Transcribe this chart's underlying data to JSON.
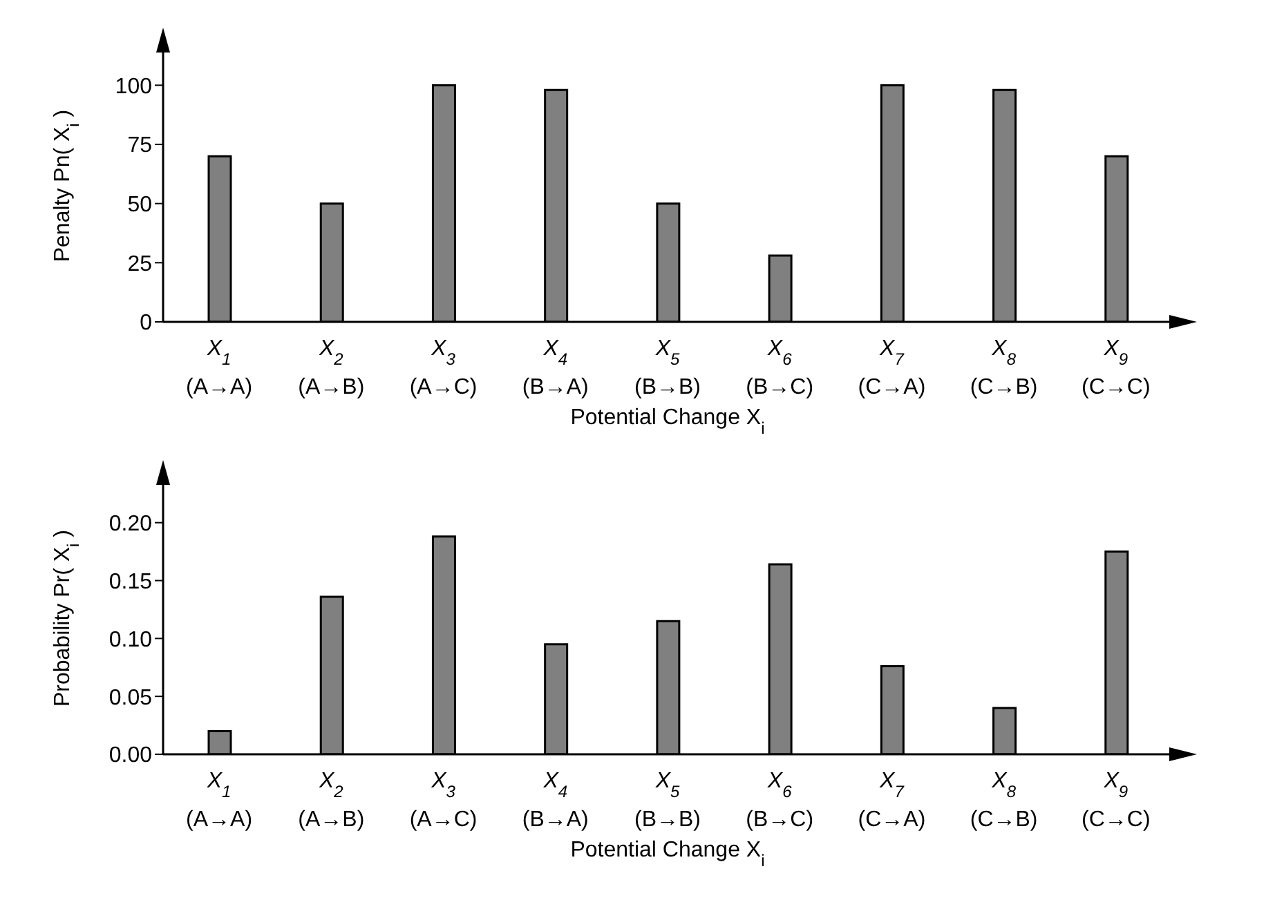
{
  "chart_data": [
    {
      "type": "bar",
      "xlabel": "Potential Change  X$_{i}$",
      "ylabel": "Penalty Pn( X$_{i}$ )",
      "categories": [
        "X$_{1}$\n(A→A)",
        "X$_{2}$\n(A→B)",
        "X$_{3}$\n(A→C)",
        "X$_{4}$\n(B→A)",
        "X$_{5}$\n(B→B)",
        "X$_{6}$\n(B→C)",
        "X$_{7}$\n(C→A)",
        "X$_{8}$\n(C→B)",
        "X$_{9}$\n(C→C)"
      ],
      "values": [
        70,
        50,
        100,
        98,
        50,
        28,
        100,
        98,
        70
      ],
      "color": "#808080",
      "ylim": [
        0,
        115
      ],
      "yticks": [
        0,
        25,
        50,
        75,
        100
      ]
    },
    {
      "type": "bar",
      "xlabel": "Potential Change  X$_{i}$",
      "ylabel": "Probability Pr( X$_{i}$ )",
      "categories": [
        "X$_{1}$\n(A→A)",
        "X$_{2}$\n(A→B)",
        "X$_{3}$\n(A→C)",
        "X$_{4}$\n(B→A)",
        "X$_{5}$\n(B→B)",
        "X$_{6}$\n(B→C)",
        "X$_{7}$\n(C→A)",
        "X$_{8}$\n(C→B)",
        "X$_{9}$\n(C→C)"
      ],
      "values": [
        0.02,
        0.136,
        0.188,
        0.095,
        0.115,
        0.164,
        0.076,
        0.04,
        0.175
      ],
      "color": "#808080",
      "ylim": [
        0,
        0.235
      ],
      "yticks": [
        {
          "value": 0,
          "label": "0.00"
        },
        {
          "value": 0.05,
          "label": "0.05"
        },
        {
          "value": 0.1,
          "label": "0.10"
        },
        {
          "value": 0.15,
          "label": "0.15"
        },
        {
          "value": 0.2,
          "label": "0.20"
        }
      ]
    }
  ]
}
